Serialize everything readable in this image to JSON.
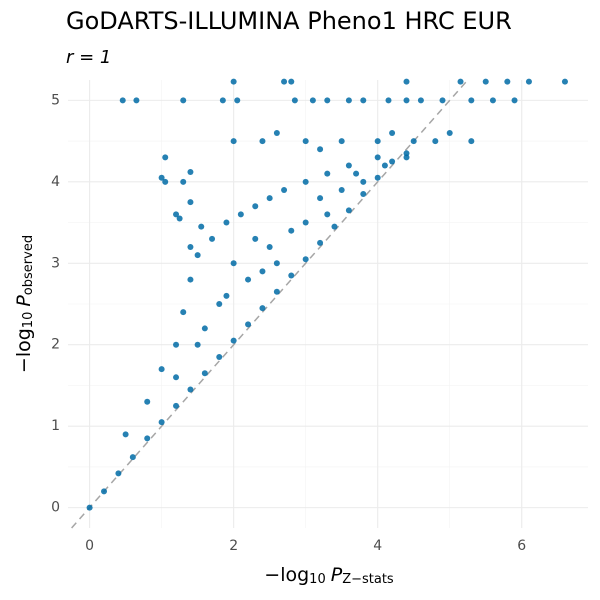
{
  "chart_data": {
    "type": "scatter",
    "title": "GoDARTS-ILLUMINA Pheno1 HRC EUR",
    "subtitle": "r = 1",
    "xlabel": [
      "−log",
      "10",
      "P",
      "Z−stats"
    ],
    "ylabel": [
      "−log",
      "10",
      "P",
      "observed"
    ],
    "color": "#006ba6",
    "xlim": [
      -0.3,
      6.92
    ],
    "ylim": [
      -0.25,
      5.25
    ],
    "xticks": [
      0,
      2,
      4,
      6
    ],
    "yticks": [
      0,
      1,
      2,
      3,
      4,
      5
    ],
    "xminor": [
      1,
      3,
      5
    ],
    "yminor": [
      0.5,
      1.5,
      2.5,
      3.5,
      4.5
    ],
    "grid": true,
    "x": [
      0,
      0.2,
      0.4,
      0.6,
      0.8,
      1.0,
      1.2,
      1.4,
      1.6,
      1.8,
      2.0,
      2.2,
      2.4,
      2.6,
      2.8,
      3.0,
      3.2,
      3.4,
      3.6,
      3.8,
      4.0,
      4.2,
      4.4,
      0.5,
      0.8,
      1.0,
      1.2,
      1.3,
      1.4,
      1.5,
      1.7,
      1.9,
      2.1,
      2.3,
      2.5,
      2.7,
      3.0,
      3.3,
      3.6,
      4.0,
      4.4,
      1.2,
      1.5,
      1.8,
      2.0,
      2.2,
      2.5,
      2.8,
      3.0,
      3.2,
      3.5,
      3.8,
      4.1,
      2.4,
      2.6,
      3.3,
      1.6,
      1.9,
      2.3,
      3.7,
      0.46,
      0.65,
      1.3,
      1.85,
      2.05,
      1.0,
      1.05,
      1.3,
      1.4,
      1.2,
      1.25,
      1.4,
      1.55,
      1.4,
      1.05,
      2.85,
      3.1,
      3.3,
      3.6,
      3.8,
      4.15,
      4.4,
      4.6,
      4.9,
      5.3,
      5.6,
      5.9,
      2.0,
      2.4,
      3.0,
      3.5,
      4.0,
      4.5,
      4.8,
      5.3,
      2.6,
      3.2,
      4.2,
      5.0,
      2.7,
      2.8,
      4.4,
      5.15,
      5.5,
      6.1,
      6.6,
      2.0,
      5.8
    ],
    "values": [
      0,
      0.2,
      0.42,
      0.62,
      0.85,
      1.05,
      1.25,
      1.45,
      1.65,
      1.85,
      2.05,
      2.25,
      2.45,
      2.65,
      2.85,
      3.05,
      3.25,
      3.45,
      3.65,
      3.85,
      4.05,
      4.25,
      4.3,
      0.9,
      1.3,
      1.7,
      2.0,
      2.4,
      2.8,
      3.1,
      3.3,
      3.5,
      3.6,
      3.7,
      3.8,
      3.9,
      4.0,
      4.1,
      4.2,
      4.3,
      4.35,
      1.6,
      2.0,
      2.5,
      3.0,
      2.8,
      3.2,
      3.4,
      3.5,
      3.8,
      3.9,
      4.0,
      4.2,
      2.9,
      3.0,
      3.6,
      2.2,
      2.6,
      3.3,
      4.1,
      5,
      5,
      5,
      5,
      5,
      4.05,
      4.0,
      4.0,
      3.75,
      3.6,
      3.55,
      3.2,
      3.45,
      4.12,
      4.3,
      5,
      5,
      5,
      5,
      5,
      5,
      5,
      5,
      5,
      5,
      5,
      5,
      4.5,
      4.5,
      4.5,
      4.5,
      4.5,
      4.5,
      4.5,
      4.5,
      4.6,
      4.4,
      4.6,
      4.6,
      5.23,
      5.23,
      5.23,
      5.23,
      5.23,
      5.23,
      5.23,
      5.23,
      5.23
    ]
  }
}
